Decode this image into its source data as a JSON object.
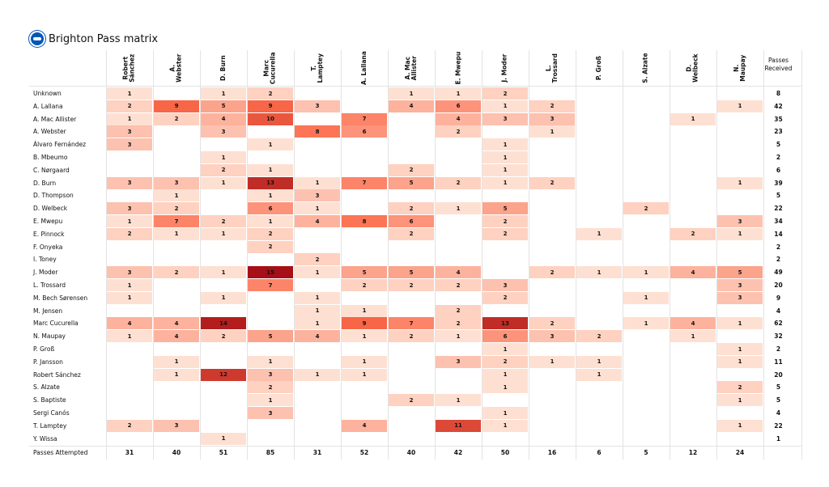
{
  "chart_data": {
    "type": "heatmap",
    "title": "Brighton Pass matrix",
    "columns": [
      "Robert\nSánchez",
      "A.\nWebster",
      "D. Burn",
      "Marc\nCucurella",
      "T.\nLamptey",
      "A. Lallana",
      "A. Mac\nAllister",
      "E. Mwepu",
      "J. Moder",
      "L.\nTrossard",
      "P. Groß",
      "S. Alzate",
      "D.\nWelbeck",
      "N.\nMaupay"
    ],
    "rows": [
      "Unknown",
      "A. Lallana",
      "A. Mac Allister",
      "A. Webster",
      "Álvaro Fernández",
      "B. Mbeumo",
      "C. Nørgaard",
      "D. Burn",
      "D. Thompson",
      "D. Welbeck",
      "E. Mwepu",
      "E. Pinnock",
      "F. Onyeka",
      "I. Toney",
      "J. Moder",
      "L. Trossard",
      "M. Bech Sørensen",
      "M. Jensen",
      "Marc Cucurella",
      "N. Maupay",
      "P. Groß",
      "P. Jansson",
      "Robert Sánchez",
      "S. Alzate",
      "S. Baptiste",
      "Sergi Canós",
      "T. Lamptey",
      "Y. Wissa"
    ],
    "values": [
      [
        1,
        0,
        1,
        2,
        0,
        0,
        1,
        1,
        2,
        0,
        0,
        0,
        0,
        0
      ],
      [
        2,
        9,
        5,
        9,
        3,
        0,
        4,
        6,
        1,
        2,
        0,
        0,
        0,
        1
      ],
      [
        1,
        2,
        4,
        10,
        0,
        7,
        0,
        4,
        3,
        3,
        0,
        0,
        1,
        0
      ],
      [
        3,
        0,
        3,
        0,
        8,
        6,
        0,
        2,
        0,
        1,
        0,
        0,
        0,
        0
      ],
      [
        3,
        0,
        0,
        1,
        0,
        0,
        0,
        0,
        1,
        0,
        0,
        0,
        0,
        0
      ],
      [
        0,
        0,
        1,
        0,
        0,
        0,
        0,
        0,
        1,
        0,
        0,
        0,
        0,
        0
      ],
      [
        0,
        0,
        2,
        1,
        0,
        0,
        2,
        0,
        1,
        0,
        0,
        0,
        0,
        0
      ],
      [
        3,
        3,
        1,
        13,
        1,
        7,
        5,
        2,
        1,
        2,
        0,
        0,
        0,
        1
      ],
      [
        0,
        1,
        0,
        1,
        3,
        0,
        0,
        0,
        0,
        0,
        0,
        0,
        0,
        0
      ],
      [
        3,
        2,
        0,
        6,
        1,
        0,
        2,
        1,
        5,
        0,
        0,
        2,
        0,
        0
      ],
      [
        1,
        7,
        2,
        1,
        4,
        8,
        6,
        0,
        2,
        0,
        0,
        0,
        0,
        3
      ],
      [
        2,
        1,
        1,
        2,
        0,
        0,
        2,
        0,
        2,
        0,
        1,
        0,
        2,
        1
      ],
      [
        0,
        0,
        0,
        2,
        0,
        0,
        0,
        0,
        0,
        0,
        0,
        0,
        0,
        0
      ],
      [
        0,
        0,
        0,
        0,
        2,
        0,
        0,
        0,
        0,
        0,
        0,
        0,
        0,
        0
      ],
      [
        3,
        2,
        1,
        15,
        1,
        5,
        5,
        4,
        0,
        2,
        1,
        1,
        4,
        5
      ],
      [
        1,
        0,
        0,
        7,
        0,
        2,
        2,
        2,
        3,
        0,
        0,
        0,
        0,
        3
      ],
      [
        1,
        0,
        1,
        0,
        1,
        0,
        0,
        0,
        2,
        0,
        0,
        1,
        0,
        3
      ],
      [
        0,
        0,
        0,
        0,
        1,
        1,
        0,
        2,
        0,
        0,
        0,
        0,
        0,
        0
      ],
      [
        4,
        4,
        14,
        0,
        1,
        9,
        7,
        2,
        13,
        2,
        0,
        1,
        4,
        1
      ],
      [
        1,
        4,
        2,
        5,
        4,
        1,
        2,
        1,
        6,
        3,
        2,
        0,
        1,
        0
      ],
      [
        0,
        0,
        0,
        0,
        0,
        0,
        0,
        0,
        1,
        0,
        0,
        0,
        0,
        1
      ],
      [
        0,
        1,
        0,
        1,
        0,
        1,
        0,
        3,
        2,
        1,
        1,
        0,
        0,
        1
      ],
      [
        0,
        1,
        12,
        3,
        1,
        1,
        0,
        0,
        1,
        0,
        1,
        0,
        0,
        0
      ],
      [
        0,
        0,
        0,
        2,
        0,
        0,
        0,
        0,
        1,
        0,
        0,
        0,
        0,
        2
      ],
      [
        0,
        0,
        0,
        1,
        0,
        0,
        2,
        1,
        0,
        0,
        0,
        0,
        0,
        1
      ],
      [
        0,
        0,
        0,
        3,
        0,
        0,
        0,
        0,
        1,
        0,
        0,
        0,
        0,
        0
      ],
      [
        2,
        3,
        0,
        0,
        0,
        4,
        0,
        11,
        1,
        0,
        0,
        0,
        0,
        1
      ],
      [
        0,
        0,
        1,
        0,
        0,
        0,
        0,
        0,
        0,
        0,
        0,
        0,
        0,
        0
      ]
    ],
    "passes_received_label": "Passes\nReceived",
    "passes_received": [
      8,
      42,
      35,
      23,
      5,
      2,
      6,
      39,
      5,
      22,
      34,
      14,
      2,
      2,
      49,
      20,
      9,
      4,
      62,
      32,
      2,
      11,
      20,
      5,
      5,
      4,
      22,
      1
    ],
    "passes_attempted_label": "Passes Attempted",
    "passes_attempted": [
      31,
      40,
      51,
      85,
      31,
      52,
      40,
      42,
      50,
      16,
      6,
      5,
      12,
      24
    ],
    "colormap": {
      "low": "#fee0d2",
      "mid": "#fb6a4a",
      "high": "#a50f15",
      "max_value": 15
    }
  },
  "logo_icon": "brighton-crest-icon"
}
